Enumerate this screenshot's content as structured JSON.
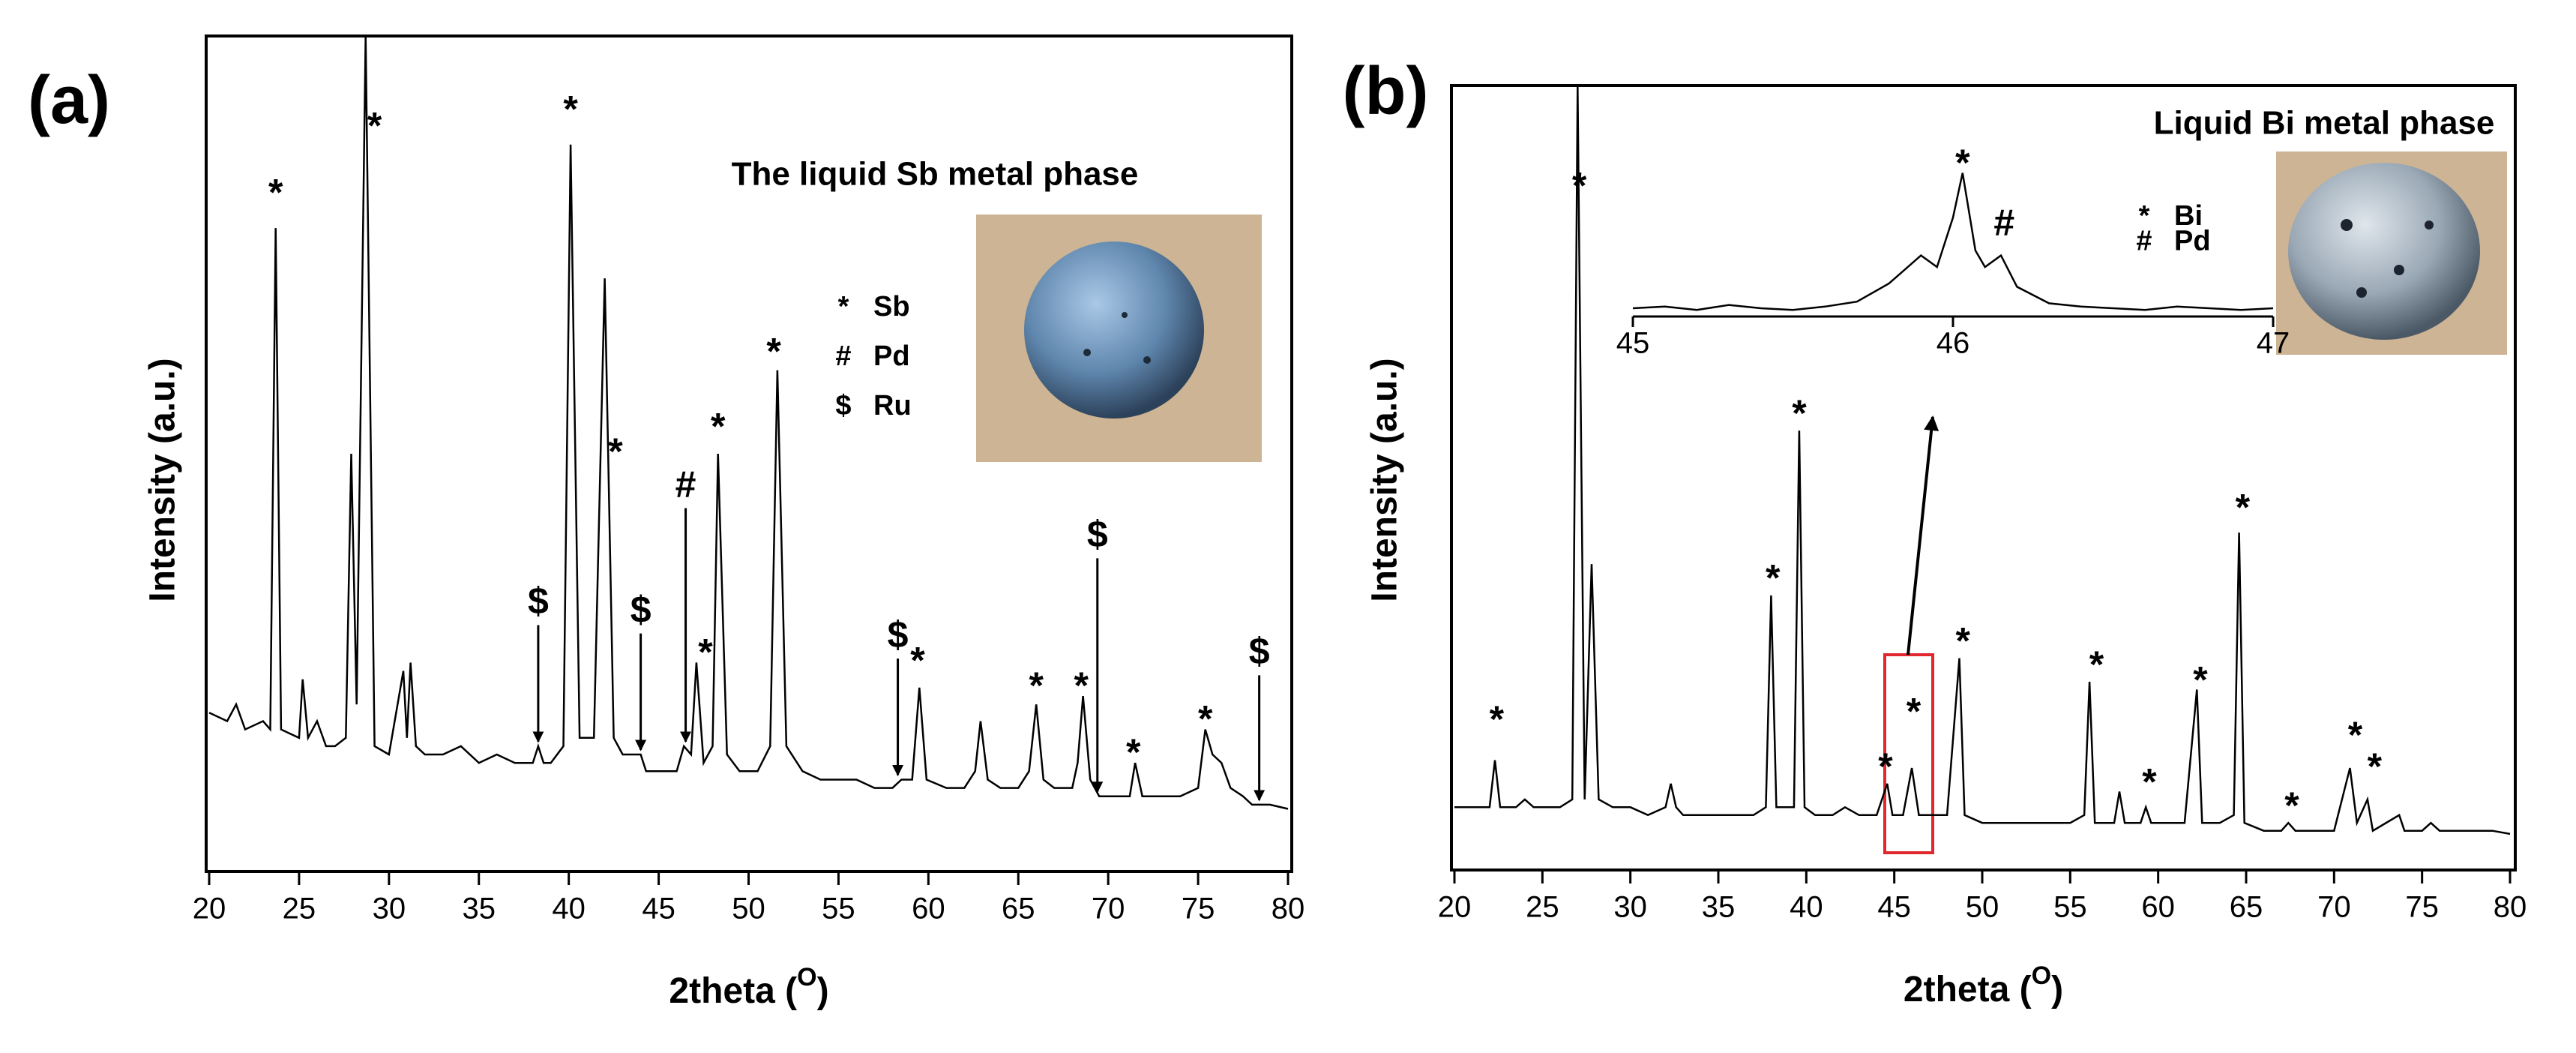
{
  "chart_data": [
    {
      "type": "line",
      "panel_label": "(a)",
      "title": "The liquid Sb metal phase",
      "xlabel": [
        "2theta (",
        "O",
        ")"
      ],
      "ylabel": "Intensity (a.u.)",
      "color": "#000000",
      "xlim": [
        20,
        80
      ],
      "ylim": [
        0,
        100
      ],
      "xticks": [
        20,
        25,
        30,
        35,
        40,
        45,
        50,
        55,
        60,
        65,
        70,
        75,
        80
      ],
      "legend": [
        {
          "symbol": "*",
          "name": "Sb"
        },
        {
          "symbol": "#",
          "name": "Pd"
        },
        {
          "symbol": "$",
          "name": "Ru"
        }
      ],
      "x": [
        20,
        21,
        21.5,
        22,
        23,
        23.4,
        23.7,
        24,
        25,
        25.2,
        25.5,
        26,
        26.5,
        27,
        27.6,
        27.9,
        28.2,
        28.7,
        29.2,
        30,
        30.8,
        31,
        31.2,
        31.5,
        32,
        33,
        34,
        35,
        36,
        37,
        38,
        38.3,
        38.6,
        39,
        39.7,
        40.1,
        40.6,
        41.4,
        42,
        42.5,
        43,
        44,
        44.3,
        45,
        46,
        46.4,
        46.8,
        47.1,
        47.5,
        48,
        48.3,
        48.8,
        49.5,
        50.5,
        51.2,
        51.6,
        52.1,
        53,
        54,
        55,
        56,
        57,
        58,
        58.5,
        59.1,
        59.5,
        59.9,
        61,
        62,
        62.6,
        62.9,
        63.3,
        64,
        65,
        65.6,
        66,
        66.4,
        67,
        68,
        68.3,
        68.6,
        69,
        69.5,
        70,
        71.2,
        71.5,
        71.9,
        73,
        74,
        75,
        75.4,
        75.8,
        76.3,
        76.8,
        77.5,
        78,
        78.5,
        79,
        80
      ],
      "values": [
        19,
        18,
        20,
        17,
        18,
        17,
        77,
        17,
        16,
        23,
        16,
        18,
        15,
        15,
        16,
        50,
        20,
        100,
        15,
        14,
        24,
        16,
        25,
        15,
        14,
        14,
        15,
        13,
        14,
        13,
        13,
        15,
        13,
        13,
        15,
        87,
        16,
        16,
        71,
        16,
        14,
        14,
        12,
        12,
        12,
        15,
        14,
        25,
        13,
        15,
        50,
        14,
        12,
        12,
        15,
        60,
        15,
        12,
        11,
        11,
        11,
        10,
        10,
        11,
        11,
        22,
        11,
        10,
        10,
        12,
        18,
        11,
        10,
        10,
        12,
        20,
        11,
        10,
        10,
        13,
        21,
        11,
        9,
        9,
        9,
        13,
        9,
        9,
        9,
        10,
        17,
        14,
        13,
        10,
        9,
        8,
        8,
        8,
        7.5
      ],
      "annotations": [
        {
          "text": "*",
          "x": 23.7,
          "y": 82
        },
        {
          "text": "*",
          "x": 29.2,
          "y": 90
        },
        {
          "text": "*",
          "x": 40.1,
          "y": 92
        },
        {
          "text": "*",
          "x": 42.6,
          "y": 51
        },
        {
          "text": "*",
          "x": 47.6,
          "y": 27
        },
        {
          "text": "*",
          "x": 48.3,
          "y": 54
        },
        {
          "text": "*",
          "x": 51.4,
          "y": 63
        },
        {
          "text": "*",
          "x": 59.4,
          "y": 26
        },
        {
          "text": "*",
          "x": 66,
          "y": 23
        },
        {
          "text": "*",
          "x": 68.5,
          "y": 23
        },
        {
          "text": "*",
          "x": 71.4,
          "y": 15
        },
        {
          "text": "*",
          "x": 75.4,
          "y": 19
        },
        {
          "text": "$",
          "x": 38.3,
          "y": 32,
          "arrow": true
        },
        {
          "text": "$",
          "x": 44,
          "y": 31,
          "arrow": true
        },
        {
          "text": "#",
          "x": 46.5,
          "y": 46,
          "arrow": true
        },
        {
          "text": "$",
          "x": 58.3,
          "y": 28,
          "arrow": true
        },
        {
          "text": "$",
          "x": 69.4,
          "y": 40,
          "arrow": true
        },
        {
          "text": "$",
          "x": 78.4,
          "y": 26,
          "arrow": true
        }
      ]
    },
    {
      "type": "line",
      "panel_label": "(b)",
      "title": "Liquid Bi metal phase",
      "xlabel": [
        "2theta (",
        "O",
        ")"
      ],
      "ylabel": "Intensity (a.u.)",
      "color": "#000000",
      "xlim": [
        20,
        80
      ],
      "ylim": [
        0,
        100
      ],
      "xticks": [
        20,
        25,
        30,
        35,
        40,
        45,
        50,
        55,
        60,
        65,
        70,
        75,
        80
      ],
      "legend": [
        {
          "symbol": "*",
          "name": "Bi"
        },
        {
          "symbol": "#",
          "name": "Pd"
        }
      ],
      "x": [
        20,
        21,
        22,
        22.3,
        22.6,
        23.5,
        24,
        24.5,
        25,
        26,
        26.7,
        27,
        27.4,
        27.8,
        28.2,
        29,
        30,
        31,
        32,
        32.3,
        32.6,
        33,
        34,
        35,
        36,
        37,
        37.7,
        38,
        38.3,
        39.3,
        39.6,
        39.9,
        40.5,
        41.5,
        42.2,
        43,
        44,
        44.6,
        44.9,
        45.5,
        46,
        46.4,
        47,
        48,
        48.7,
        49,
        50,
        51,
        52,
        53,
        54,
        55,
        55.8,
        56.1,
        56.4,
        57.5,
        57.8,
        58.1,
        59,
        59.3,
        59.6,
        60.5,
        61.5,
        62.2,
        62.5,
        63.5,
        64.3,
        64.6,
        64.9,
        66,
        67,
        67.4,
        67.8,
        69,
        70,
        70.9,
        71.3,
        71.9,
        72.2,
        73.7,
        74,
        75,
        75.5,
        76,
        77,
        78,
        79,
        80
      ],
      "values": [
        8,
        8,
        8,
        14,
        8,
        8,
        9,
        8,
        8,
        8,
        9,
        100,
        9,
        39,
        9,
        8,
        8,
        7,
        8,
        11,
        8,
        7,
        7,
        7,
        7,
        7,
        8,
        35,
        8,
        8,
        56,
        8,
        7,
        7,
        8,
        7,
        7,
        11,
        7,
        7,
        13,
        7,
        7,
        7,
        27,
        7,
        6,
        6,
        6,
        6,
        6,
        6,
        7,
        24,
        6,
        6,
        10,
        6,
        6,
        8,
        6,
        6,
        6,
        23,
        6,
        6,
        7,
        43,
        6,
        5,
        5,
        6,
        5,
        5,
        5,
        13,
        6,
        9,
        5,
        7,
        5,
        5,
        6,
        5,
        5,
        5,
        5,
        4.6
      ],
      "annotations": [
        {
          "text": "*",
          "x": 22.4,
          "y": 20
        },
        {
          "text": "*",
          "x": 27.1,
          "y": 88
        },
        {
          "text": "*",
          "x": 38.1,
          "y": 38
        },
        {
          "text": "*",
          "x": 39.6,
          "y": 59
        },
        {
          "text": "*",
          "x": 44.5,
          "y": 14
        },
        {
          "text": "*",
          "x": 46.1,
          "y": 21
        },
        {
          "text": "*",
          "x": 48.9,
          "y": 30
        },
        {
          "text": "*",
          "x": 56.5,
          "y": 27
        },
        {
          "text": "*",
          "x": 59.5,
          "y": 12
        },
        {
          "text": "*",
          "x": 62.4,
          "y": 25
        },
        {
          "text": "*",
          "x": 64.8,
          "y": 47
        },
        {
          "text": "*",
          "x": 67.6,
          "y": 9
        },
        {
          "text": "*",
          "x": 71.2,
          "y": 18
        },
        {
          "text": "*",
          "x": 72.3,
          "y": 14
        }
      ]
    },
    {
      "type": "line",
      "color": "#000000",
      "xlim": [
        45,
        47
      ],
      "ylim": [
        0,
        100
      ],
      "xticks": [
        45,
        46,
        47
      ],
      "x": [
        45,
        45.1,
        45.2,
        45.3,
        45.4,
        45.5,
        45.6,
        45.7,
        45.8,
        45.9,
        45.95,
        46,
        46.03,
        46.07,
        46.1,
        46.15,
        46.2,
        46.3,
        46.4,
        46.5,
        46.6,
        46.7,
        46.8,
        46.9,
        47
      ],
      "values": [
        5,
        6,
        4,
        7,
        5,
        4,
        6,
        9,
        20,
        37,
        30,
        60,
        87,
        40,
        30,
        37,
        18,
        8,
        6,
        5,
        4,
        6,
        5,
        4,
        5
      ],
      "annotations": [
        {
          "text": "*",
          "x": 46.03,
          "y": 97
        },
        {
          "text": "#",
          "x": 46.16,
          "y": 55
        }
      ]
    }
  ]
}
